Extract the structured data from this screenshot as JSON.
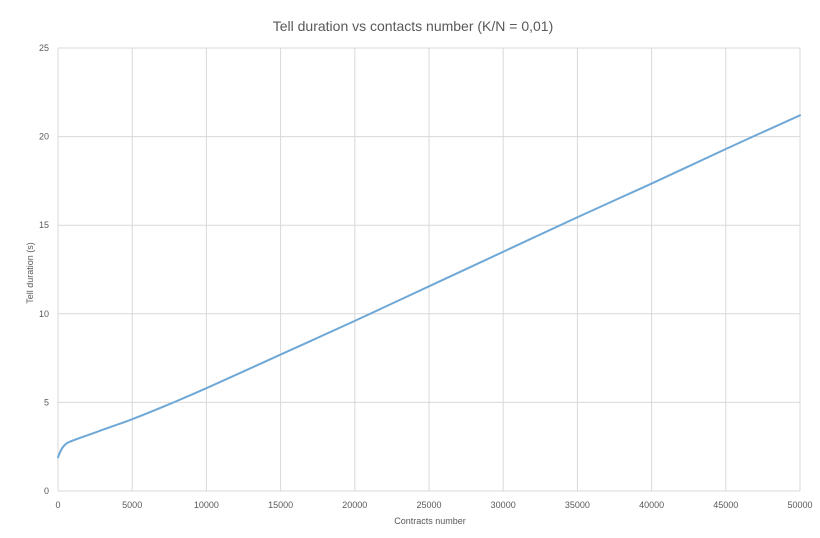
{
  "chart_data": {
    "type": "line",
    "title": "Tell duration vs contacts number (K/N = 0,01)",
    "xlabel": "Contracts number",
    "ylabel": "Tell duration (s)",
    "xlim": [
      0,
      50000
    ],
    "ylim": [
      0,
      25
    ],
    "x_ticks": [
      "0",
      "5000",
      "10000",
      "15000",
      "20000",
      "25000",
      "30000",
      "35000",
      "40000",
      "45000",
      "50000"
    ],
    "y_ticks": [
      "0",
      "5",
      "10",
      "15",
      "20",
      "25"
    ],
    "grid": true,
    "legend": "none",
    "series": [
      {
        "color": "#6fa8d6",
        "x": [
          0,
          200,
          400,
          600,
          800,
          1000,
          2000,
          3000,
          4000,
          5000,
          7500,
          10000,
          15000,
          20000,
          25000,
          30000,
          35000,
          40000,
          45000,
          50000
        ],
        "y": [
          1.9,
          2.3,
          2.55,
          2.7,
          2.78,
          2.85,
          3.15,
          3.45,
          3.75,
          4.05,
          4.9,
          5.8,
          7.7,
          9.6,
          11.55,
          13.5,
          15.45,
          17.35,
          19.3,
          21.2
        ]
      }
    ]
  }
}
